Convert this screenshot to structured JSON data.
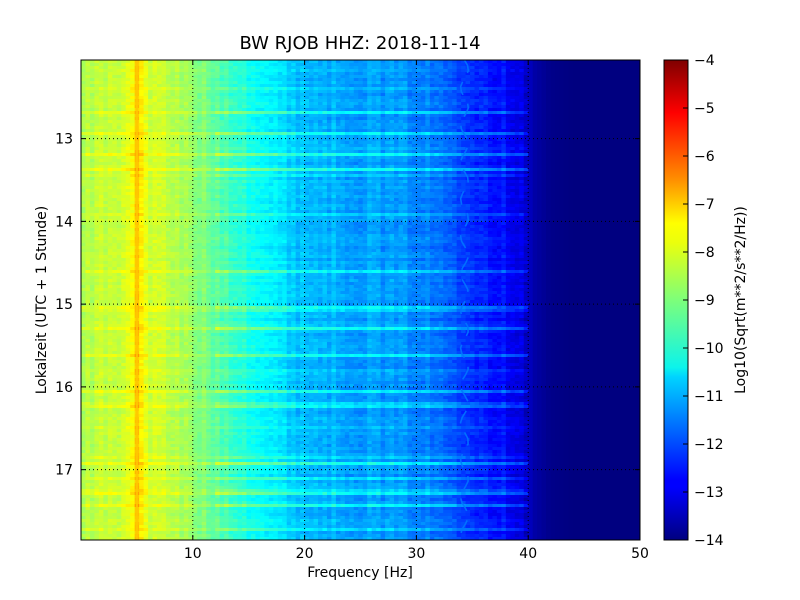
{
  "chart_data": {
    "type": "heatmap",
    "title": "BW RJOB HHZ: 2018-11-14",
    "xlabel": "Frequency [Hz]",
    "ylabel": "Lokalzeit (UTC + 1 Stunde)",
    "xlim": [
      0,
      50
    ],
    "ylim": [
      12.05,
      17.85
    ],
    "y_inverted": true,
    "x_ticks": [
      10,
      20,
      30,
      40,
      50
    ],
    "x_tick_labels": [
      "10",
      "20",
      "30",
      "40",
      "50"
    ],
    "y_ticks": [
      13,
      14,
      15,
      16,
      17
    ],
    "y_tick_labels": [
      "13",
      "14",
      "15",
      "16",
      "17"
    ],
    "grid": true,
    "colormap": "jet",
    "colorbar": {
      "label": "Log10(Sqrt(m**2/s**2/Hz))",
      "range": [
        -14,
        -4
      ],
      "ticks": [
        -4,
        -5,
        -6,
        -7,
        -8,
        -9,
        -10,
        -11,
        -12,
        -13,
        -14
      ],
      "tick_labels": [
        "−4",
        "−5",
        "−6",
        "−7",
        "−8",
        "−9",
        "−10",
        "−11",
        "−12",
        "−13",
        "−14"
      ]
    },
    "spectrum_profile": {
      "frequency_hz": [
        0,
        2,
        4,
        5,
        6,
        8,
        10,
        12,
        14,
        16,
        18,
        20,
        22,
        24,
        26,
        28,
        30,
        32,
        34,
        36,
        38,
        39.5,
        40.5,
        42,
        44,
        50
      ],
      "log10_psd": [
        -8.6,
        -8.3,
        -8.2,
        -7.3,
        -8.2,
        -8.4,
        -8.8,
        -9.3,
        -9.7,
        -10.2,
        -10.6,
        -10.9,
        -11.0,
        -11.1,
        -11.2,
        -11.3,
        -11.4,
        -11.7,
        -12.0,
        -12.4,
        -12.7,
        -13.0,
        -13.6,
        -13.9,
        -14.0,
        -14.0
      ]
    },
    "features": [
      {
        "frequency_hz": 5,
        "log10_psd": -7.2
      },
      {
        "frequency_hz": 34.3,
        "log10_psd": -11.6
      }
    ]
  }
}
